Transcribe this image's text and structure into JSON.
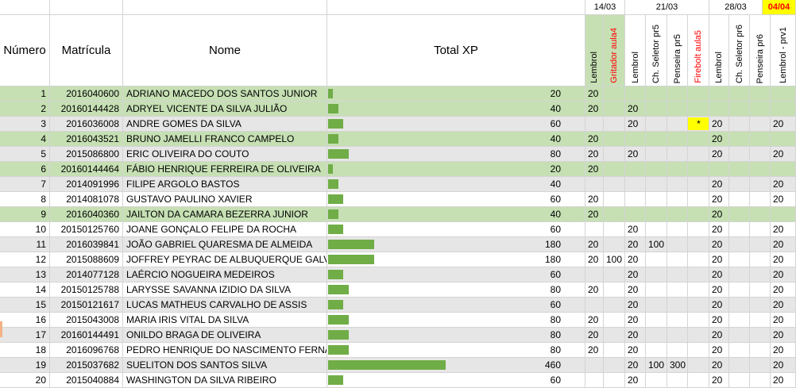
{
  "headers": {
    "numero": "Número",
    "matricula": "Matrícula",
    "nome": "Nome",
    "total_xp": "Total XP"
  },
  "date_groups": [
    {
      "label": "14/03",
      "highlight": false
    },
    {
      "label": "21/03",
      "highlight": false
    },
    {
      "label": "28/03",
      "highlight": false
    },
    {
      "label": "04/04",
      "highlight": true
    }
  ],
  "activities": [
    {
      "label": "Lembrol",
      "color": "black"
    },
    {
      "label": "Gritador aula4",
      "color": "red"
    },
    {
      "label": "Lembrol",
      "color": "black"
    },
    {
      "label": "Ch. Seletor pr5",
      "color": "black"
    },
    {
      "label": "Penseira pr5",
      "color": "black"
    },
    {
      "label": "Firebolt aula5",
      "color": "red"
    },
    {
      "label": "Lembrol",
      "color": "black"
    },
    {
      "label": "Ch. Seletor pr6",
      "color": "black"
    },
    {
      "label": "Penseira pr6",
      "color": "black"
    },
    {
      "label": "Lembrol - prv1",
      "color": "black"
    }
  ],
  "xp_max": 460,
  "colors": {
    "green_row": "#c6e0b4",
    "gray_row": "#e7e6e6",
    "bar": "#70ad47",
    "activity_header": "#c6e0b4",
    "highlight": "#ffff00"
  },
  "rows": [
    {
      "numero": "1",
      "matricula": "2016040600",
      "nome": "ADRIANO MACEDO DOS SANTOS JUNIOR",
      "xp": 20,
      "xp_label": "20",
      "bg": "green",
      "scores": [
        "20",
        "",
        "",
        "",
        "",
        "",
        "",
        "",
        "",
        ""
      ]
    },
    {
      "numero": "2",
      "matricula": "20160144428",
      "nome": "ADRYEL VICENTE DA SILVA JULIÃO",
      "xp": 40,
      "xp_label": "40",
      "bg": "green",
      "scores": [
        "20",
        "",
        "20",
        "",
        "",
        "",
        "",
        "",
        "",
        ""
      ]
    },
    {
      "numero": "3",
      "matricula": "2016036008",
      "nome": "ANDRE GOMES DA SILVA",
      "xp": 60,
      "xp_label": "60",
      "bg": "gray",
      "scores": [
        "",
        "",
        "20",
        "",
        "",
        "*",
        "20",
        "",
        "",
        "20"
      ]
    },
    {
      "numero": "4",
      "matricula": "2016043521",
      "nome": "BRUNO JAMELLI FRANCO CAMPELO",
      "xp": 40,
      "xp_label": "40",
      "bg": "green",
      "scores": [
        "20",
        "",
        "",
        "",
        "",
        "",
        "20",
        "",
        "",
        ""
      ]
    },
    {
      "numero": "5",
      "matricula": "2015086800",
      "nome": "ERIC OLIVEIRA DO COUTO",
      "xp": 80,
      "xp_label": "80",
      "bg": "gray",
      "scores": [
        "20",
        "",
        "20",
        "",
        "",
        "",
        "20",
        "",
        "",
        "20"
      ]
    },
    {
      "numero": "6",
      "matricula": "20160144464",
      "nome": "FÁBIO HENRIQUE FERREIRA DE OLIVEIRA",
      "xp": 20,
      "xp_label": "20",
      "bg": "green",
      "scores": [
        "20",
        "",
        "",
        "",
        "",
        "",
        "",
        "",
        "",
        ""
      ]
    },
    {
      "numero": "7",
      "matricula": "2014091996",
      "nome": "FILIPE ARGOLO BASTOS",
      "xp": 40,
      "xp_label": "40",
      "bg": "gray",
      "scores": [
        "",
        "",
        "",
        "",
        "",
        "",
        "20",
        "",
        "",
        "20"
      ]
    },
    {
      "numero": "8",
      "matricula": "2014081078",
      "nome": "GUSTAVO PAULINO XAVIER",
      "xp": 60,
      "xp_label": "60",
      "bg": "white",
      "scores": [
        "20",
        "",
        "",
        "",
        "",
        "",
        "20",
        "",
        "",
        "20"
      ]
    },
    {
      "numero": "9",
      "matricula": "2016040360",
      "nome": "JAILTON DA CAMARA BEZERRA JUNIOR",
      "xp": 40,
      "xp_label": "40",
      "bg": "green",
      "scores": [
        "20",
        "",
        "",
        "",
        "",
        "",
        "20",
        "",
        "",
        ""
      ]
    },
    {
      "numero": "10",
      "matricula": "20150125760",
      "nome": "JOANE GONÇALO FELIPE DA ROCHA",
      "xp": 60,
      "xp_label": "60",
      "bg": "white",
      "scores": [
        "",
        "",
        "20",
        "",
        "",
        "",
        "20",
        "",
        "",
        "20"
      ]
    },
    {
      "numero": "11",
      "matricula": "2016039841",
      "nome": "JOÃO GABRIEL QUARESMA DE ALMEIDA",
      "xp": 180,
      "xp_label": "180",
      "bg": "gray",
      "scores": [
        "20",
        "",
        "20",
        "100",
        "",
        "",
        "20",
        "",
        "",
        "20"
      ]
    },
    {
      "numero": "12",
      "matricula": "2015088609",
      "nome": "JOFFREY PEYRAC DE ALBUQUERQUE GALVAO",
      "xp": 180,
      "xp_label": "180",
      "bg": "white",
      "scores": [
        "20",
        "100",
        "20",
        "",
        "",
        "",
        "20",
        "",
        "",
        "20"
      ]
    },
    {
      "numero": "13",
      "matricula": "2014077128",
      "nome": "LAÉRCIO NOGUEIRA MEDEIROS",
      "xp": 60,
      "xp_label": "60",
      "bg": "gray",
      "scores": [
        "",
        "",
        "20",
        "",
        "",
        "",
        "20",
        "",
        "",
        "20"
      ]
    },
    {
      "numero": "14",
      "matricula": "20150125788",
      "nome": "LARYSSE SAVANNA IZIDIO DA SILVA",
      "xp": 80,
      "xp_label": "80",
      "bg": "white",
      "scores": [
        "20",
        "",
        "20",
        "",
        "",
        "",
        "20",
        "",
        "",
        "20"
      ]
    },
    {
      "numero": "15",
      "matricula": "20150121617",
      "nome": "LUCAS MATHEUS CARVALHO DE ASSIS",
      "xp": 60,
      "xp_label": "60",
      "bg": "gray",
      "scores": [
        "",
        "",
        "20",
        "",
        "",
        "",
        "20",
        "",
        "",
        "20"
      ]
    },
    {
      "numero": "16",
      "matricula": "2015043008",
      "nome": "MARIA IRIS VITAL DA SILVA",
      "xp": 80,
      "xp_label": "80",
      "bg": "white",
      "scores": [
        "20",
        "",
        "20",
        "",
        "",
        "",
        "20",
        "",
        "",
        "20"
      ]
    },
    {
      "numero": "17",
      "matricula": "20160144491",
      "nome": "ONILDO BRAGA DE OLIVEIRA",
      "xp": 80,
      "xp_label": "80",
      "bg": "gray",
      "scores": [
        "20",
        "",
        "20",
        "",
        "",
        "",
        "20",
        "",
        "",
        "20"
      ]
    },
    {
      "numero": "18",
      "matricula": "2016096768",
      "nome": "PEDRO HENRIQUE DO NASCIMENTO FERNANDES",
      "xp": 80,
      "xp_label": "80",
      "bg": "white",
      "scores": [
        "20",
        "",
        "20",
        "",
        "",
        "",
        "20",
        "",
        "",
        "20"
      ]
    },
    {
      "numero": "19",
      "matricula": "2015037682",
      "nome": "SUELITON DOS SANTOS SILVA",
      "xp": 460,
      "xp_label": "460",
      "bg": "gray",
      "scores": [
        "",
        "",
        "20",
        "100",
        "300",
        "",
        "20",
        "",
        "",
        "20"
      ]
    },
    {
      "numero": "20",
      "matricula": "2015040884",
      "nome": "WASHINGTON DA SILVA RIBEIRO",
      "xp": 60,
      "xp_label": "60",
      "bg": "white",
      "scores": [
        "",
        "",
        "20",
        "",
        "",
        "",
        "20",
        "",
        "",
        "20"
      ]
    }
  ]
}
